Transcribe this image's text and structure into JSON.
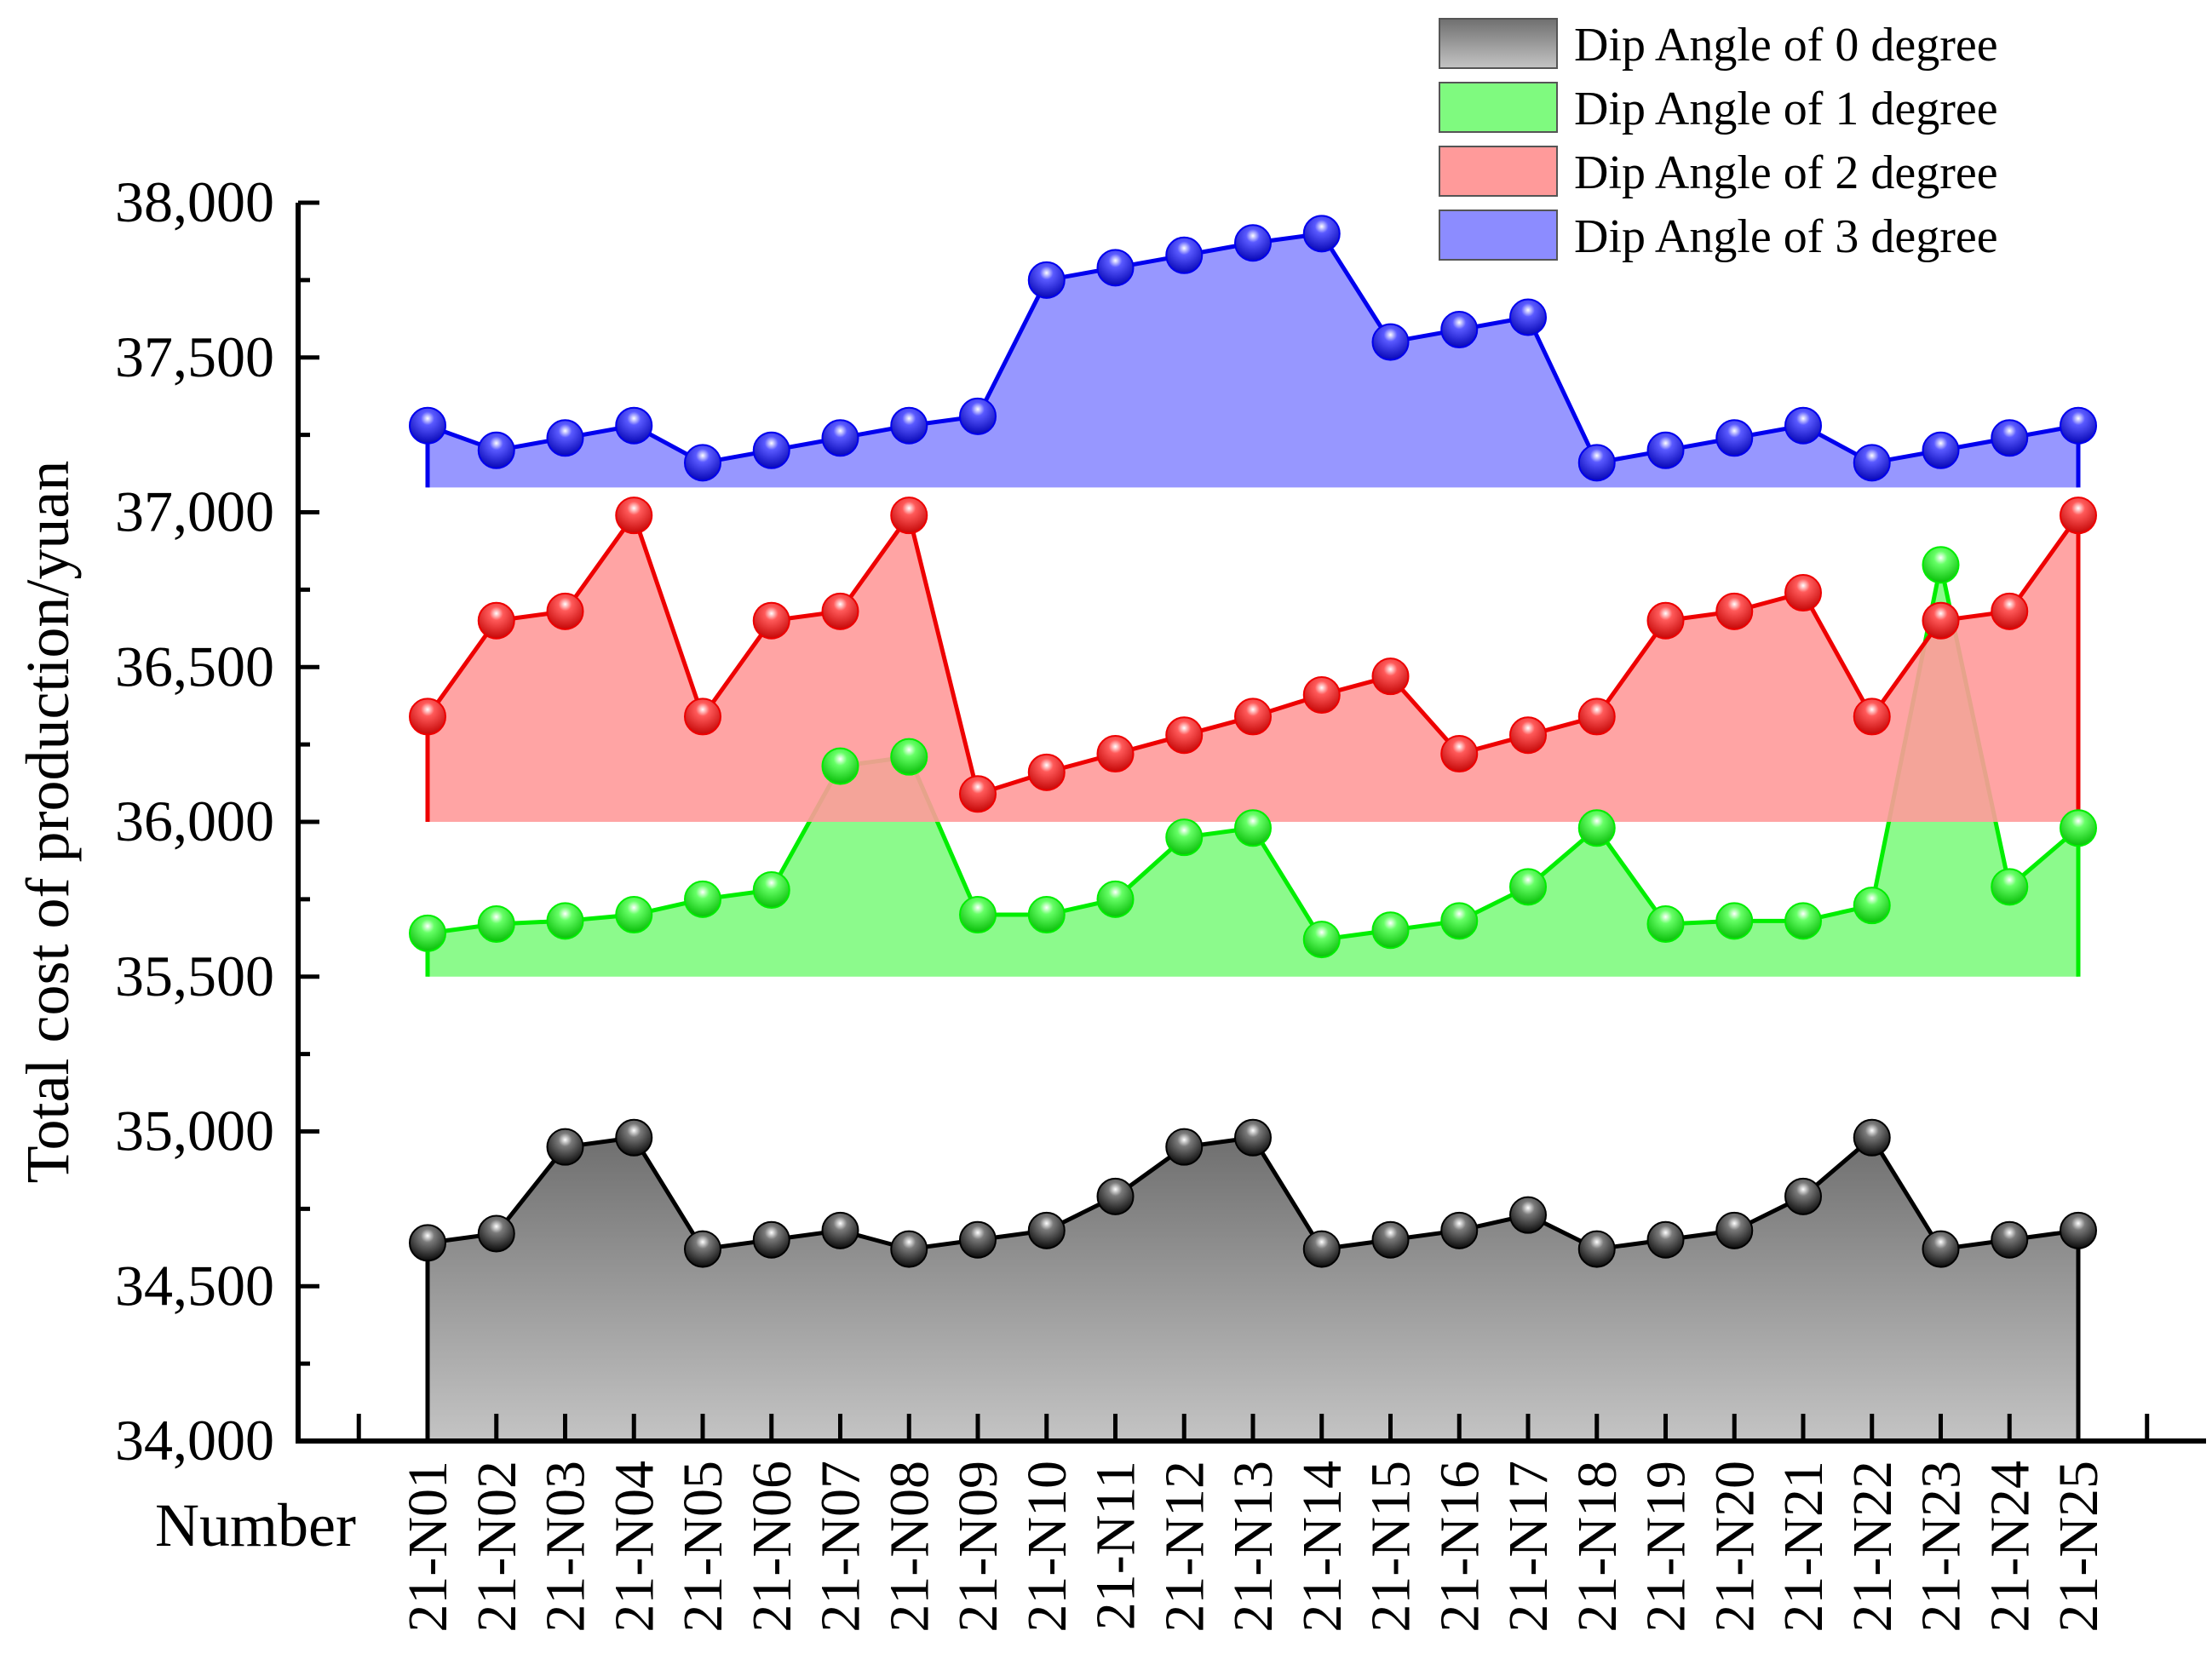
{
  "chart_data": {
    "type": "area",
    "title": "",
    "xlabel": "Number",
    "ylabel": "Total cost of production/yuan",
    "ylim": [
      34000,
      38000
    ],
    "yticks": [
      34000,
      34500,
      35000,
      35500,
      36000,
      36500,
      37000,
      37500,
      38000
    ],
    "ytick_labels": [
      "34,000",
      "34,500",
      "35,000",
      "35,500",
      "36,000",
      "36,500",
      "37,000",
      "37,500",
      "38,000"
    ],
    "categories": [
      "21-N01",
      "21-N02",
      "21-N03",
      "21-N04",
      "21-N05",
      "21-N06",
      "21-N07",
      "21-N08",
      "21-N09",
      "21-N10",
      "21-N11",
      "21-N12",
      "21-N13",
      "21-N14",
      "21-N15",
      "21-N16",
      "21-N17",
      "21-N18",
      "21-N19",
      "21-N20",
      "21-N21",
      "21-N22",
      "21-N23",
      "21-N24",
      "21-N25"
    ],
    "legend_position": "top-right",
    "grid": false,
    "series": [
      {
        "name": "Dip Angle of 0 degree",
        "line_color": "#000000",
        "fill_color": "#9a9a9a",
        "baseline": 34000,
        "values": [
          34640,
          34670,
          34950,
          34980,
          34620,
          34650,
          34680,
          34620,
          34650,
          34680,
          34790,
          34950,
          34980,
          34620,
          34650,
          34680,
          34730,
          34620,
          34650,
          34680,
          34790,
          34980,
          34620,
          34650,
          34680
        ]
      },
      {
        "name": "Dip Angle of 1 degree",
        "line_color": "#00ee00",
        "fill_color": "#7ffa7f",
        "baseline": 35500,
        "values": [
          35640,
          35670,
          35680,
          35700,
          35750,
          35780,
          36180,
          36210,
          35700,
          35700,
          35750,
          35950,
          35980,
          35620,
          35650,
          35680,
          35790,
          35980,
          35670,
          35680,
          35680,
          35730,
          36830,
          35790,
          35980
        ]
      },
      {
        "name": "Dip Angle of 2 degree",
        "line_color": "#ee0000",
        "fill_color": "#ff9a9a",
        "baseline": 36000,
        "values": [
          36340,
          36650,
          36680,
          36990,
          36340,
          36650,
          36680,
          36990,
          36090,
          36160,
          36220,
          36280,
          36340,
          36410,
          36470,
          36220,
          36280,
          36340,
          36650,
          36680,
          36740,
          36340,
          36650,
          36680,
          36990
        ]
      },
      {
        "name": "Dip Angle of 3 degree",
        "line_color": "#0000ee",
        "fill_color": "#8c8cff",
        "baseline": 37080,
        "values": [
          37280,
          37200,
          37240,
          37280,
          37160,
          37200,
          37240,
          37280,
          37310,
          37750,
          37790,
          37830,
          37870,
          37900,
          37550,
          37590,
          37630,
          37160,
          37200,
          37240,
          37280,
          37160,
          37200,
          37240,
          37280
        ]
      }
    ]
  }
}
